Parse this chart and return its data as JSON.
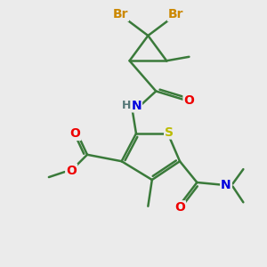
{
  "background_color": "#ebebeb",
  "bond_color": "#3a7a3a",
  "bond_width": 1.8,
  "atom_colors": {
    "Br": "#cc8800",
    "O": "#ee0000",
    "N": "#0000dd",
    "S": "#bbbb00",
    "H": "#557777",
    "C": "#3a7a3a"
  },
  "font_size": 10,
  "fig_size": [
    3.0,
    3.0
  ],
  "dpi": 100
}
